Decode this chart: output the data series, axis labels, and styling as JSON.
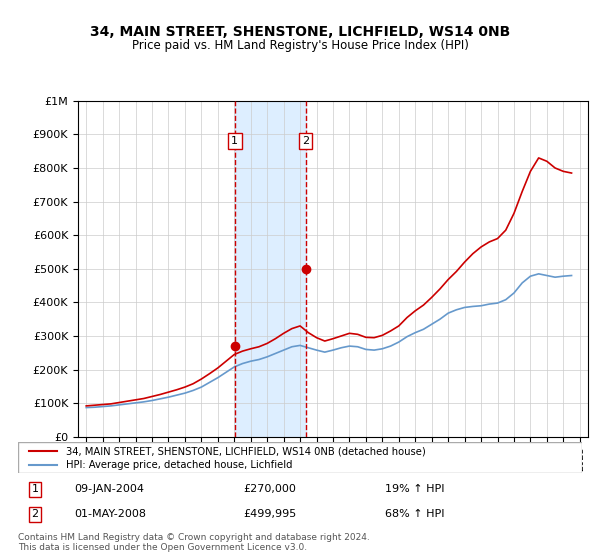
{
  "title": "34, MAIN STREET, SHENSTONE, LICHFIELD, WS14 0NB",
  "subtitle": "Price paid vs. HM Land Registry's House Price Index (HPI)",
  "legend_line1": "34, MAIN STREET, SHENSTONE, LICHFIELD, WS14 0NB (detached house)",
  "legend_line2": "HPI: Average price, detached house, Lichfield",
  "annotation1_date": "09-JAN-2004",
  "annotation1_price": "£270,000",
  "annotation1_hpi": "19% ↑ HPI",
  "annotation2_date": "01-MAY-2008",
  "annotation2_price": "£499,995",
  "annotation2_hpi": "68% ↑ HPI",
  "footnote1": "Contains HM Land Registry data © Crown copyright and database right 2024.",
  "footnote2": "This data is licensed under the Open Government Licence v3.0.",
  "vline1_x": 2004.03,
  "vline2_x": 2008.33,
  "marker1_x": 2004.03,
  "marker1_y": 270000,
  "marker2_x": 2008.33,
  "marker2_y": 499995,
  "ylim": [
    0,
    1000000
  ],
  "xlim": [
    1994.5,
    2025.5
  ],
  "red_color": "#cc0000",
  "blue_color": "#6699cc",
  "shade_color": "#ddeeff",
  "hpi_years": [
    1995,
    1995.5,
    1996,
    1996.5,
    1997,
    1997.5,
    1998,
    1998.5,
    1999,
    1999.5,
    2000,
    2000.5,
    2001,
    2001.5,
    2002,
    2002.5,
    2003,
    2003.5,
    2004,
    2004.5,
    2005,
    2005.5,
    2006,
    2006.5,
    2007,
    2007.5,
    2008,
    2008.5,
    2009,
    2009.5,
    2010,
    2010.5,
    2011,
    2011.5,
    2012,
    2012.5,
    2013,
    2013.5,
    2014,
    2014.5,
    2015,
    2015.5,
    2016,
    2016.5,
    2017,
    2017.5,
    2018,
    2018.5,
    2019,
    2019.5,
    2020,
    2020.5,
    2021,
    2021.5,
    2022,
    2022.5,
    2023,
    2023.5,
    2024,
    2024.5
  ],
  "hpi_values": [
    87000,
    88000,
    90000,
    92000,
    95000,
    98000,
    101000,
    104000,
    108000,
    113000,
    118000,
    124000,
    130000,
    138000,
    148000,
    162000,
    176000,
    192000,
    208000,
    218000,
    225000,
    230000,
    238000,
    248000,
    258000,
    268000,
    272000,
    265000,
    258000,
    252000,
    258000,
    265000,
    270000,
    268000,
    260000,
    258000,
    262000,
    270000,
    282000,
    298000,
    310000,
    320000,
    335000,
    350000,
    368000,
    378000,
    385000,
    388000,
    390000,
    395000,
    398000,
    408000,
    428000,
    458000,
    478000,
    485000,
    480000,
    475000,
    478000,
    480000
  ],
  "red_years": [
    1995,
    1995.5,
    1996,
    1996.5,
    1997,
    1997.5,
    1998,
    1998.5,
    1999,
    1999.5,
    2000,
    2000.5,
    2001,
    2001.5,
    2002,
    2002.5,
    2003,
    2003.5,
    2004,
    2004.5,
    2005,
    2005.5,
    2006,
    2006.5,
    2007,
    2007.5,
    2008,
    2008.5,
    2009,
    2009.5,
    2010,
    2010.5,
    2011,
    2011.5,
    2012,
    2012.5,
    2013,
    2013.5,
    2014,
    2014.5,
    2015,
    2015.5,
    2016,
    2016.5,
    2017,
    2017.5,
    2018,
    2018.5,
    2019,
    2019.5,
    2020,
    2020.5,
    2021,
    2021.5,
    2022,
    2022.5,
    2023,
    2023.5,
    2024,
    2024.5
  ],
  "red_values": [
    92000,
    94000,
    96000,
    98000,
    102000,
    106000,
    110000,
    114000,
    120000,
    126000,
    133000,
    140000,
    148000,
    158000,
    172000,
    188000,
    205000,
    225000,
    245000,
    255000,
    262000,
    268000,
    278000,
    292000,
    308000,
    322000,
    330000,
    310000,
    295000,
    285000,
    292000,
    300000,
    308000,
    305000,
    296000,
    295000,
    302000,
    315000,
    330000,
    355000,
    375000,
    392000,
    415000,
    440000,
    468000,
    492000,
    520000,
    545000,
    565000,
    580000,
    590000,
    615000,
    665000,
    730000,
    790000,
    830000,
    820000,
    800000,
    790000,
    785000
  ]
}
